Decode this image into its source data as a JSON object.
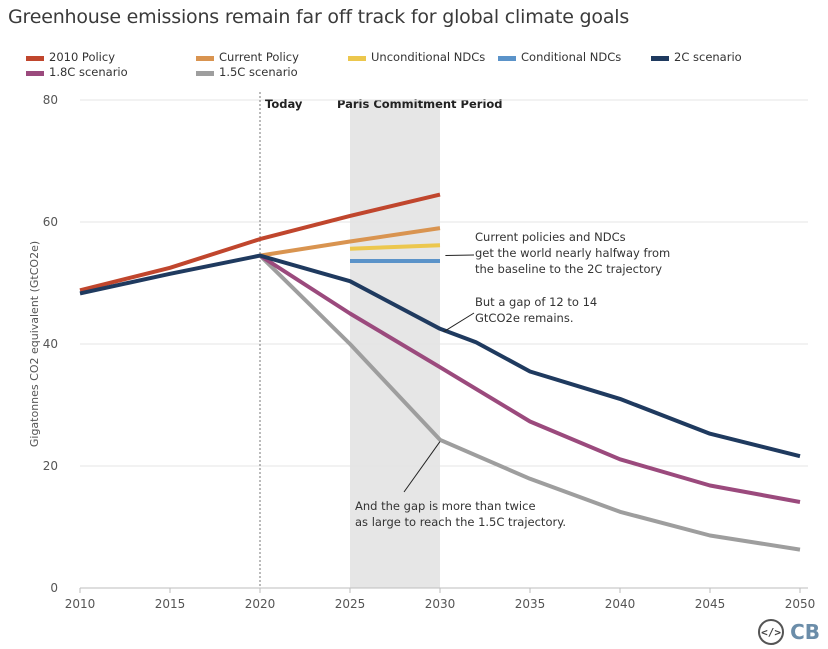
{
  "title": "Greenhouse emissions remain far off track for global climate goals",
  "logo": {
    "code": "</>",
    "brand": "CB"
  },
  "chart_data": {
    "type": "line",
    "ylabel": "Gigatonnes CO2 equivalent (GtCO2e)",
    "xlim": [
      2010,
      2050
    ],
    "ylim": [
      0,
      80
    ],
    "x_ticks": [
      2010,
      2015,
      2020,
      2025,
      2030,
      2035,
      2040,
      2045,
      2050
    ],
    "y_ticks": [
      0,
      20,
      40,
      60,
      80
    ],
    "grid": "horizontal",
    "today": {
      "x": 2020,
      "label": "Today"
    },
    "period": {
      "start": 2025,
      "end": 2030,
      "label": "Paris Commitment Period"
    },
    "legend_position": "top",
    "series": [
      {
        "name": "2010 Policy",
        "color": "#c0462d",
        "x": [
          2010,
          2015,
          2020,
          2025,
          2030
        ],
        "y": [
          48.8,
          52.5,
          57.2,
          61.0,
          64.5
        ]
      },
      {
        "name": "Current Policy",
        "color": "#d99450",
        "x": [
          2020,
          2025,
          2030
        ],
        "y": [
          54.5,
          56.8,
          59.0
        ]
      },
      {
        "name": "Unconditional NDCs",
        "color": "#ecc74d",
        "x": [
          2025,
          2030
        ],
        "y": [
          55.6,
          56.2
        ]
      },
      {
        "name": "Conditional NDCs",
        "color": "#5b93c9",
        "x": [
          2025,
          2030
        ],
        "y": [
          53.6,
          53.6
        ]
      },
      {
        "name": "2C scenario",
        "color": "#1f3a5f",
        "x": [
          2010,
          2015,
          2020,
          2025,
          2030,
          2032,
          2035,
          2040,
          2045,
          2050
        ],
        "y": [
          48.3,
          51.5,
          54.5,
          50.3,
          42.5,
          40.3,
          35.5,
          31.0,
          25.3,
          21.6
        ]
      },
      {
        "name": "1.8C scenario",
        "color": "#9b4a7d",
        "x": [
          2020,
          2025,
          2030,
          2035,
          2040,
          2045,
          2050
        ],
        "y": [
          54.5,
          45.0,
          36.2,
          27.3,
          21.1,
          16.8,
          14.1
        ]
      },
      {
        "name": "1.5C scenario",
        "color": "#9e9e9e",
        "x": [
          2020,
          2025,
          2030,
          2035,
          2040,
          2045,
          2050
        ],
        "y": [
          54.5,
          40.0,
          24.3,
          17.9,
          12.5,
          8.6,
          6.3
        ]
      }
    ],
    "annotations": [
      {
        "lines": [
          "Current policies and NDCs",
          "get the world nearly halfway from",
          "the baseline to the 2C trajectory"
        ],
        "target": [
          2030.3,
          54.5
        ]
      },
      {
        "lines": [
          "But a gap of 12 to 14",
          "GtCO2e remains."
        ],
        "target": [
          2030.2,
          42.0
        ]
      },
      {
        "lines": [
          "And the gap is more than twice",
          "as large to reach the 1.5C trajectory."
        ],
        "target": [
          2030.0,
          24.0
        ]
      }
    ]
  }
}
